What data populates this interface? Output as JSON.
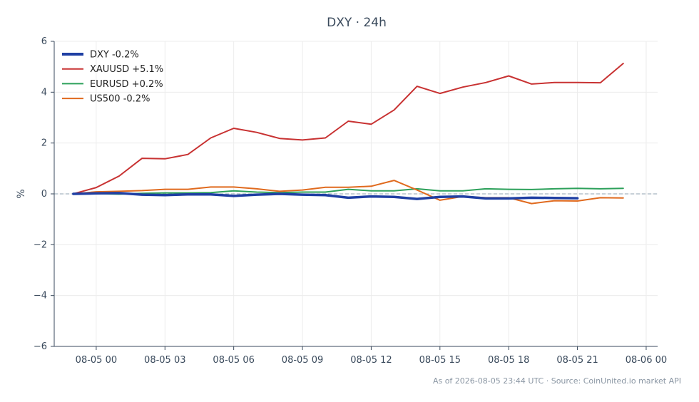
{
  "chart_data": {
    "type": "line",
    "title": "DXY · 24h",
    "ylabel": "%",
    "xlabel": "",
    "ylim": [
      -6,
      6
    ],
    "yticks": [
      6,
      4,
      2,
      0,
      -2,
      -4,
      -6
    ],
    "ytick_labels": [
      "6",
      "4",
      "2",
      "0",
      "−2",
      "−4",
      "−6"
    ],
    "xlim": [
      "2026-08-04 22:10",
      "2026-08-06 00:30"
    ],
    "xticks": [
      "2026-08-05 00:00",
      "2026-08-05 03:00",
      "2026-08-05 06:00",
      "2026-08-05 09:00",
      "2026-08-05 12:00",
      "2026-08-05 15:00",
      "2026-08-05 18:00",
      "2026-08-05 21:00",
      "2026-08-06 00:00"
    ],
    "xtick_labels": [
      "08-05 00",
      "08-05 03",
      "08-05 06",
      "08-05 09",
      "08-05 12",
      "08-05 15",
      "08-05 18",
      "08-05 21",
      "08-06 00"
    ],
    "x": [
      "2026-08-04 23:00",
      "2026-08-05 00:00",
      "2026-08-05 01:00",
      "2026-08-05 02:00",
      "2026-08-05 03:00",
      "2026-08-05 04:00",
      "2026-08-05 05:00",
      "2026-08-05 06:00",
      "2026-08-05 07:00",
      "2026-08-05 08:00",
      "2026-08-05 09:00",
      "2026-08-05 10:00",
      "2026-08-05 11:00",
      "2026-08-05 12:00",
      "2026-08-05 13:00",
      "2026-08-05 14:00",
      "2026-08-05 15:00",
      "2026-08-05 16:00",
      "2026-08-05 17:00",
      "2026-08-05 18:00",
      "2026-08-05 19:00",
      "2026-08-05 20:00",
      "2026-08-05 21:00",
      "2026-08-05 22:00",
      "2026-08-05 23:00"
    ],
    "reference_line": 0,
    "grid": true,
    "legend": "top-left",
    "series": [
      {
        "name": "DXY -0.2%",
        "color": "#1f3fa3",
        "values": [
          0.0,
          0.02,
          0.03,
          -0.03,
          -0.05,
          -0.02,
          -0.02,
          -0.08,
          -0.03,
          0.0,
          -0.03,
          -0.05,
          -0.15,
          -0.1,
          -0.12,
          -0.2,
          -0.12,
          -0.1,
          -0.18,
          -0.18,
          -0.15,
          -0.16,
          -0.17,
          null,
          null
        ]
      },
      {
        "name": "XAUUSD +5.1%",
        "color": "#c83232",
        "values": [
          0.0,
          0.25,
          0.7,
          1.4,
          1.38,
          1.55,
          2.2,
          2.58,
          2.42,
          2.18,
          2.12,
          2.2,
          2.86,
          2.74,
          3.3,
          4.23,
          3.95,
          4.2,
          4.38,
          4.64,
          4.32,
          4.38,
          4.38,
          4.37,
          5.13
        ]
      },
      {
        "name": "EURUSD +0.2%",
        "color": "#2ca05a",
        "values": [
          0.0,
          0.01,
          -0.01,
          0.02,
          0.04,
          0.04,
          0.05,
          0.12,
          0.07,
          0.05,
          0.07,
          0.07,
          0.18,
          0.12,
          0.12,
          0.2,
          0.12,
          0.12,
          0.2,
          0.18,
          0.17,
          0.2,
          0.22,
          0.2,
          0.22
        ]
      },
      {
        "name": "US500 -0.2%",
        "color": "#e06a1e",
        "values": [
          0.0,
          0.08,
          0.1,
          0.13,
          0.18,
          0.18,
          0.27,
          0.27,
          0.2,
          0.1,
          0.15,
          0.26,
          0.26,
          0.3,
          0.53,
          0.15,
          -0.25,
          -0.1,
          -0.15,
          -0.15,
          -0.38,
          -0.27,
          -0.28,
          -0.15,
          -0.16
        ]
      }
    ],
    "footer": "As of 2026-08-05 23:44 UTC · Source: CoinUnited.io market API"
  }
}
